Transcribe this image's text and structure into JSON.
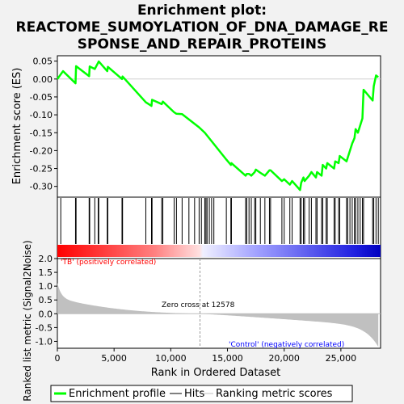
{
  "chart_data": {
    "type": "line",
    "title_lines": [
      "Enrichment plot:",
      "REACTOME_SUMOYLATION_OF_DNA_DAMAGE_RE",
      "SPONSE_AND_REPAIR_PROTEINS"
    ],
    "xlabel": "Rank in Ordered Dataset",
    "ylabel_top": "Enrichment score (ES)",
    "ylabel_bottom": "Ranked list metric (Signal2Noise)",
    "x_ticks": [
      0,
      5000,
      10000,
      15000,
      20000,
      25000
    ],
    "x_tick_labels": [
      "0",
      "5,000",
      "10,000",
      "15,000",
      "20,000",
      "25,000"
    ],
    "xlim": [
      0,
      28500
    ],
    "es_ylim": [
      -0.33,
      0.065
    ],
    "es_yticks": [
      0.05,
      0.0,
      -0.05,
      -0.1,
      -0.15,
      -0.2,
      -0.25,
      -0.3
    ],
    "es_ytick_labels": [
      "0.05",
      "0.00",
      "-0.05",
      "-0.10",
      "-0.15",
      "-0.20",
      "-0.25",
      "-0.30"
    ],
    "metric_ylim": [
      -1.25,
      2.0
    ],
    "metric_yticks": [
      2.0,
      1.5,
      1.0,
      0.5,
      0.0,
      -0.5,
      -1.0
    ],
    "metric_ytick_labels": [
      "2.0",
      "1.5",
      "1.0",
      "0.5",
      "0.0",
      "-0.5",
      "-1.0"
    ],
    "es_curve": {
      "x": [
        0,
        500,
        1600,
        1650,
        2800,
        2850,
        3300,
        3600,
        3650,
        4400,
        4450,
        5700,
        5750,
        7800,
        8300,
        8350,
        9200,
        9300,
        10300,
        10500,
        11000,
        12500,
        13000,
        14900,
        15300,
        15350,
        16600,
        16700,
        16900,
        17100,
        17400,
        17500,
        17900,
        18300,
        18700,
        18800,
        19800,
        20000,
        20500,
        20700,
        21400,
        21500,
        21700,
        21800,
        22200,
        22400,
        22800,
        22900,
        23300,
        23400,
        23700,
        23800,
        24400,
        24500,
        24800,
        24900,
        25500,
        25600,
        25800,
        26000,
        26200,
        26300,
        26500,
        26700,
        26900,
        27000,
        27800,
        27900,
        28100,
        28300
      ],
      "y": [
        0.0,
        0.022,
        -0.012,
        0.036,
        0.008,
        0.035,
        0.028,
        0.046,
        0.049,
        0.022,
        0.034,
        0.0,
        0.007,
        -0.065,
        -0.075,
        -0.058,
        -0.07,
        -0.063,
        -0.093,
        -0.097,
        -0.098,
        -0.135,
        -0.15,
        -0.225,
        -0.24,
        -0.235,
        -0.27,
        -0.265,
        -0.265,
        -0.27,
        -0.26,
        -0.253,
        -0.262,
        -0.27,
        -0.255,
        -0.255,
        -0.285,
        -0.28,
        -0.295,
        -0.285,
        -0.31,
        -0.29,
        -0.275,
        -0.285,
        -0.27,
        -0.26,
        -0.275,
        -0.26,
        -0.27,
        -0.24,
        -0.25,
        -0.235,
        -0.25,
        -0.23,
        -0.235,
        -0.215,
        -0.23,
        -0.22,
        -0.2,
        -0.18,
        -0.165,
        -0.14,
        -0.15,
        -0.13,
        -0.11,
        -0.03,
        -0.06,
        -0.02,
        0.01,
        0.005
      ]
    },
    "hits": [
      300,
      1600,
      1650,
      2800,
      2850,
      3300,
      3600,
      3650,
      4400,
      4450,
      5700,
      5750,
      7800,
      8300,
      8350,
      9200,
      9300,
      10300,
      10500,
      11000,
      11600,
      12100,
      12500,
      12700,
      13000,
      13100,
      13200,
      13400,
      13600,
      13800,
      14900,
      15300,
      15350,
      16600,
      16700,
      16900,
      17100,
      17400,
      17500,
      17900,
      18300,
      18700,
      18800,
      19800,
      20000,
      20500,
      20700,
      21400,
      21500,
      21700,
      21800,
      22200,
      22400,
      22800,
      22900,
      23300,
      23400,
      23700,
      23800,
      24400,
      24500,
      24800,
      24900,
      25500,
      25600,
      25800,
      26000,
      26200,
      26300,
      26500,
      26700,
      26900,
      27000,
      27800,
      27900,
      28100,
      28300
    ],
    "zero_cross_rank": 12578,
    "annotations": {
      "positive": "'TB' (positively correlated)",
      "zero_cross": "Zero cross at 12578",
      "negative": "'Control' (negatively correlated)"
    },
    "legend": [
      {
        "label": "Enrichment profile",
        "color": "#00ff00"
      },
      {
        "label": "Hits",
        "color": "#000000"
      },
      {
        "label": "Ranking metric scores",
        "color": "#c0c0c0"
      }
    ],
    "colors": {
      "es_line": "#00ff00",
      "positive_label": "#ff0000",
      "negative_label": "#0000ff",
      "metric_fill": "#c0c0c0"
    }
  }
}
